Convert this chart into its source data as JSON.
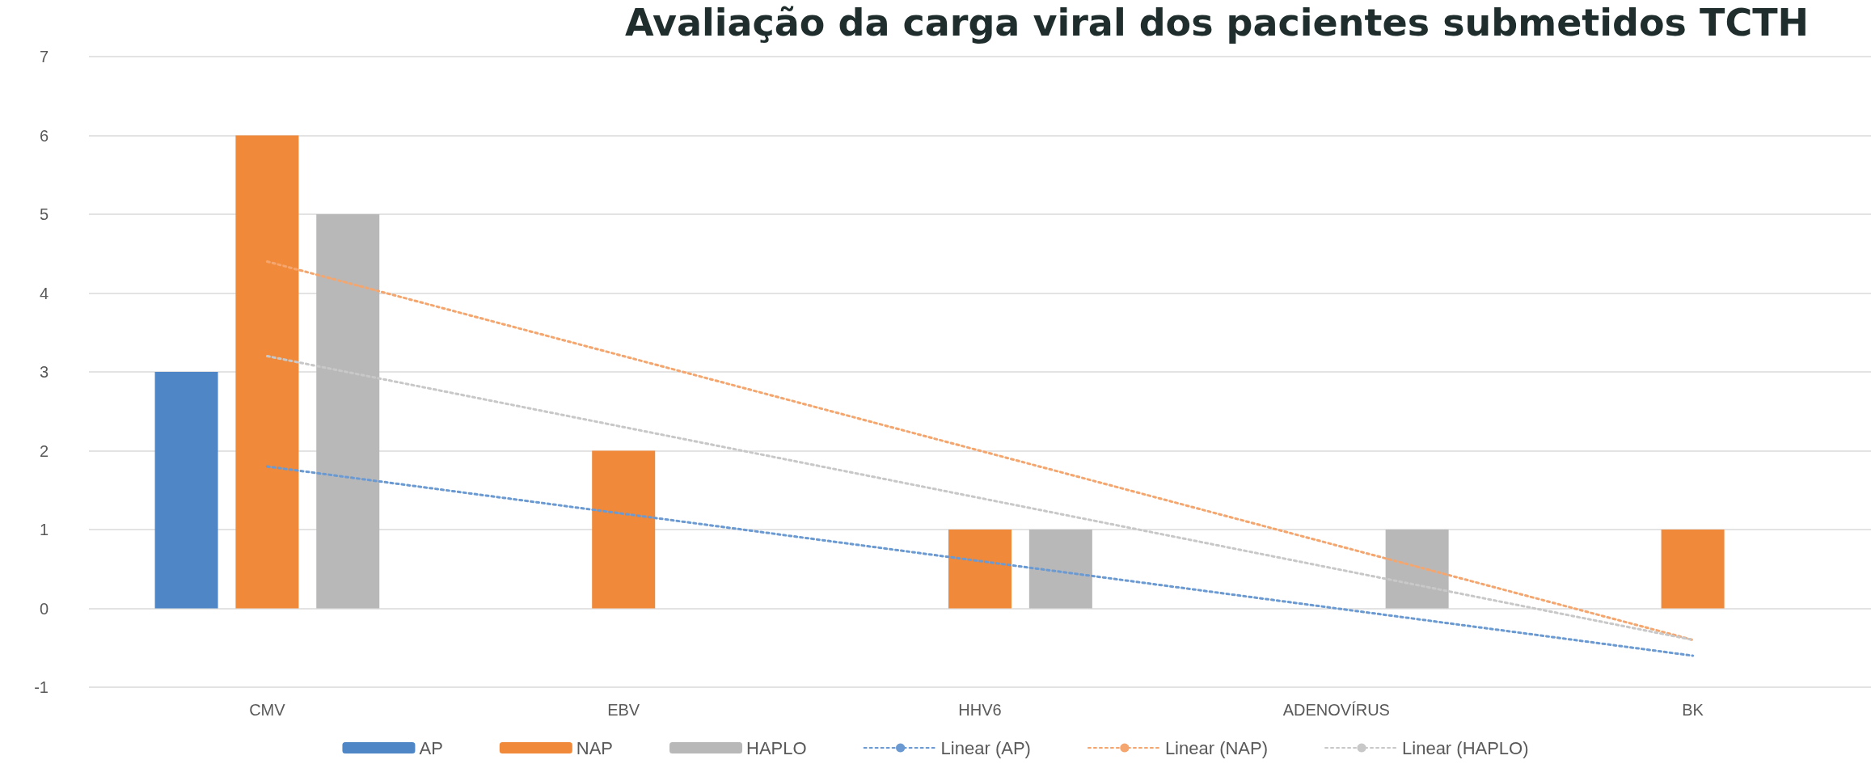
{
  "chart_data": {
    "type": "bar",
    "title": "Avaliação da carga viral dos pacientes submetidos TCTH",
    "categories": [
      "CMV",
      "EBV",
      "HHV6",
      "ADENOVÍRUS",
      "BK"
    ],
    "series": [
      {
        "name": "AP",
        "color": "#4e86c6",
        "values": [
          3,
          0,
          0,
          0,
          0
        ]
      },
      {
        "name": "NAP",
        "color": "#f0893a",
        "values": [
          6,
          2,
          1,
          0,
          1
        ]
      },
      {
        "name": "HAPLO",
        "color": "#b8b8b8",
        "values": [
          5,
          0,
          1,
          1,
          0
        ]
      },
      {
        "name": "Linear (AP)",
        "type": "line",
        "color": "#6b9ad3",
        "line_style": "dotted",
        "marker": "none",
        "values": [
          1.8,
          1.2,
          0.6,
          0,
          -0.6
        ]
      },
      {
        "name": "Linear (NAP)",
        "type": "line",
        "color": "#f5a66e",
        "line_style": "dotted",
        "marker": "none",
        "values": [
          4.4,
          3.2,
          2,
          0.8,
          -0.4
        ]
      },
      {
        "name": "Linear (HAPLO)",
        "type": "line",
        "color": "#c8c8c8",
        "line_style": "dotted",
        "marker": "none",
        "values": [
          3.2,
          2.3,
          1.4,
          0.5,
          -0.4
        ]
      }
    ],
    "ylim": [
      -1,
      7
    ],
    "yticks": [
      -1,
      0,
      1,
      2,
      3,
      4,
      5,
      6,
      7
    ],
    "grid": "y",
    "legend": "bottom"
  }
}
